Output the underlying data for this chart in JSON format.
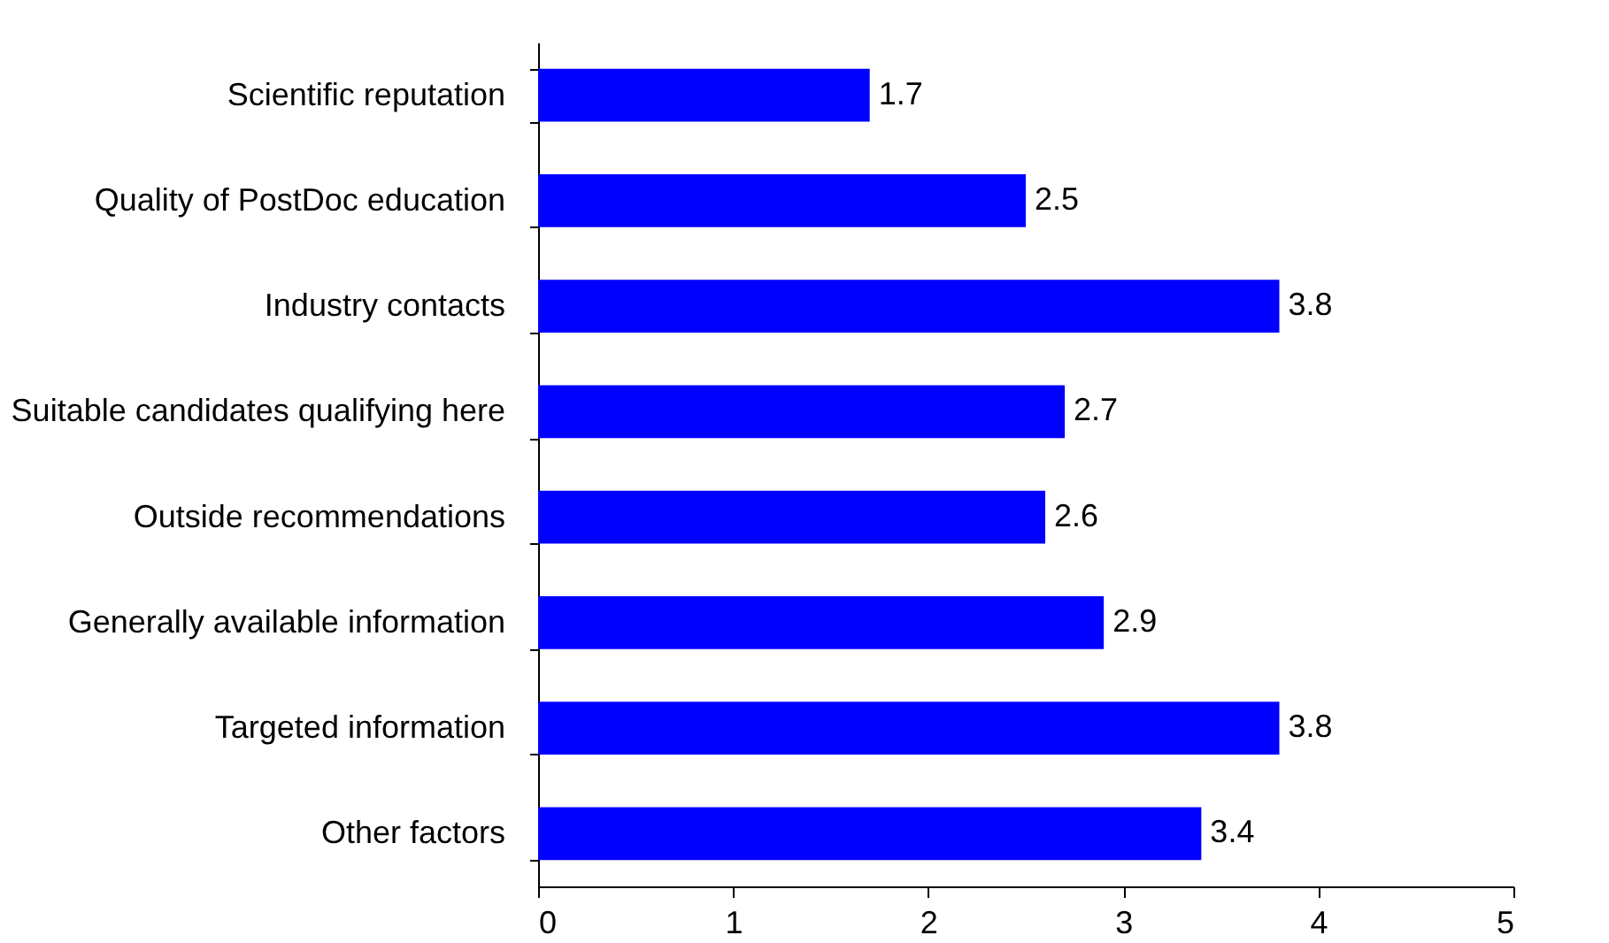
{
  "chart_data": {
    "type": "bar",
    "orientation": "horizontal",
    "categories": [
      "Scientific reputation",
      "Quality of PostDoc education",
      "Industry contacts",
      "Suitable candidates qualifying here",
      "Outside recommendations",
      "Generally available information",
      "Targeted information",
      "Other factors"
    ],
    "values": [
      1.7,
      2.5,
      3.8,
      2.7,
      2.6,
      2.9,
      3.8,
      3.4
    ],
    "color": "#0000ff",
    "xlim": [
      0,
      5
    ],
    "xticks": [
      0,
      1,
      2,
      3,
      4,
      5
    ],
    "grid": false,
    "data_labels": true
  }
}
